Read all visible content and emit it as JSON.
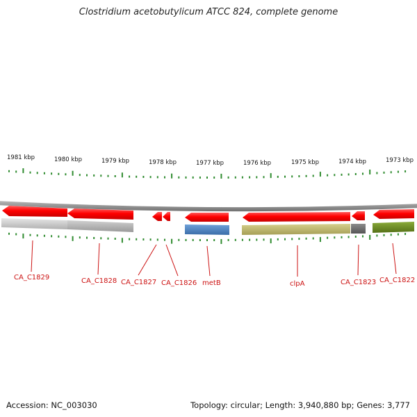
{
  "title": "Clostridium acetobutylicum ATCC 824, complete genome",
  "kbp_labels": [
    "1981 kbp",
    "1980 kbp",
    "1979 kbp",
    "1978 kbp",
    "1977 kbp",
    "1976 kbp",
    "1975 kbp",
    "1974 kbp",
    "1973 kbp"
  ],
  "genes": [
    {
      "name": "CA_C1829",
      "strand": "reverse",
      "gene_color": "#ff1a1a",
      "cds_color": "#c8c8c8"
    },
    {
      "name": "CA_C1828",
      "strand": "reverse",
      "gene_color": "#ff1a1a",
      "cds_color": "#b4b4b4"
    },
    {
      "name": "CA_C1827",
      "strand": "reverse",
      "gene_color": "#ff1a1a",
      "cds_color": ""
    },
    {
      "name": "CA_C1826",
      "strand": "reverse",
      "gene_color": "#ff1a1a",
      "cds_color": ""
    },
    {
      "name": "metB",
      "strand": "reverse",
      "gene_color": "#ff1a1a",
      "cds_color": "#4a7fbf"
    },
    {
      "name": "clpA",
      "strand": "reverse",
      "gene_color": "#ff1a1a",
      "cds_color": "#bdb56a"
    },
    {
      "name": "CA_C1823",
      "strand": "reverse",
      "gene_color": "#ff1a1a",
      "cds_color": "#6e6e6e"
    },
    {
      "name": "CA_C1822",
      "strand": "reverse",
      "gene_color": "#ff1a1a",
      "cds_color": "#6b8e23"
    }
  ],
  "footer": {
    "accession": "Accession: NC_003030",
    "summary": "Topology: circular; Length: 3,940,880 bp; Genes: 3,777"
  },
  "colors": {
    "tick": "#2e8b2e",
    "backbone": "#888888",
    "label": "#cc1111"
  }
}
